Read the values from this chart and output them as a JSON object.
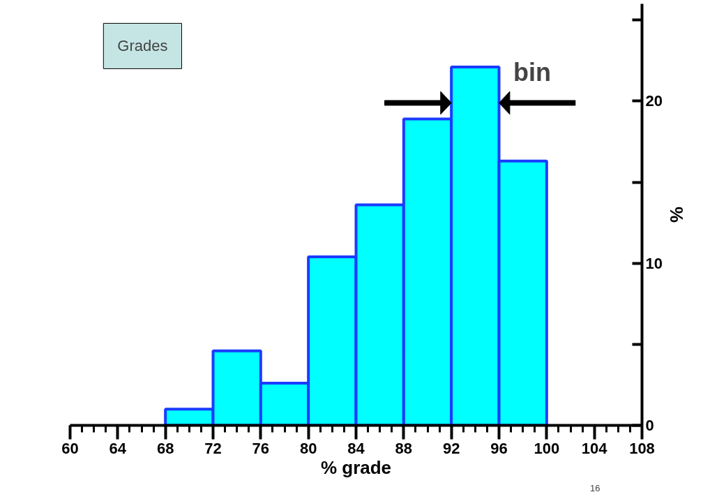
{
  "chart_data": {
    "type": "histogram",
    "title": "Grades",
    "xlabel": "% grade",
    "ylabel": "%",
    "bins": [
      68,
      72,
      76,
      80,
      84,
      88,
      92,
      96,
      100
    ],
    "values": [
      1.0,
      4.6,
      2.6,
      10.4,
      13.6,
      18.9,
      22.1,
      16.3
    ],
    "color": "#00ffff",
    "xlim": [
      60,
      108
    ],
    "xticks": [
      60,
      64,
      68,
      72,
      76,
      80,
      84,
      88,
      92,
      96,
      100,
      104,
      108
    ],
    "ylim": [
      0,
      26
    ],
    "yticks": [
      0,
      {
        "value": 5,
        "label": null
      },
      10,
      {
        "value": 15,
        "label": null
      },
      20,
      {
        "value": 25,
        "label": null
      }
    ],
    "grid": false,
    "annotations": [
      "bin",
      "16"
    ]
  }
}
